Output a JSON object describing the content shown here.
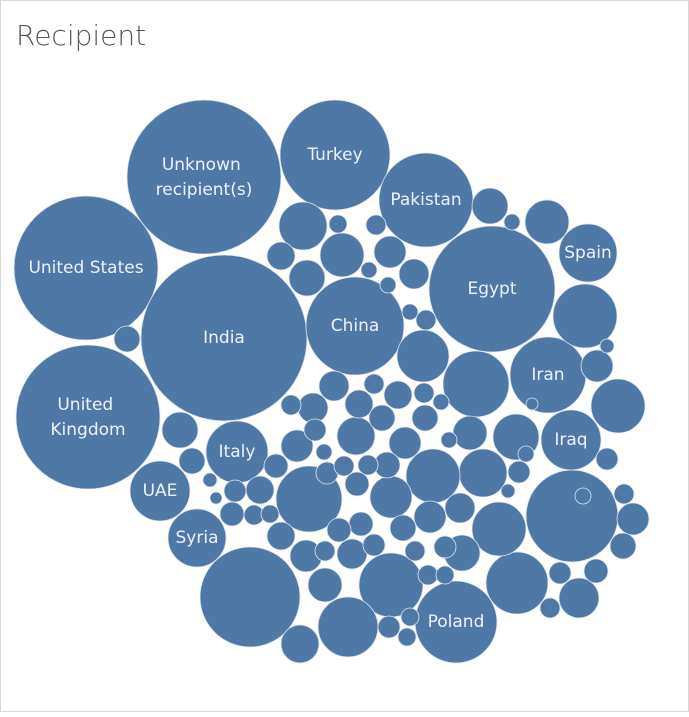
{
  "chart_data": {
    "type": "bubble",
    "title": "Recipient",
    "color": "#4e79a7",
    "categories": [
      "Unknown recipient(s)",
      "Turkey",
      "Pakistan",
      "United States",
      "India",
      "China",
      "Egypt",
      "Spain",
      "United Kingdom",
      "Iran",
      "Iraq",
      "Italy",
      "UAE",
      "Syria",
      "Poland",
      null,
      null,
      null,
      null,
      null,
      null,
      null,
      null,
      null,
      null,
      null,
      null,
      null,
      null,
      null,
      null,
      null,
      null,
      null,
      null,
      null,
      null,
      null,
      null,
      null,
      null,
      null,
      null,
      null,
      null,
      null,
      null,
      null,
      null,
      null,
      null,
      null,
      null,
      null,
      null,
      null,
      null,
      null,
      null,
      null,
      null,
      null,
      null,
      null,
      null,
      null,
      null,
      null,
      null,
      null,
      null,
      null,
      null,
      null,
      null,
      null,
      null,
      null,
      null,
      null,
      null,
      null,
      null,
      null,
      null,
      null,
      null,
      null,
      null,
      null,
      null,
      null,
      null,
      null,
      null,
      null,
      null,
      null,
      null,
      null,
      null,
      null,
      null,
      null,
      null,
      null,
      null,
      null,
      null,
      null,
      null,
      null,
      null
    ],
    "values": [
      5929,
      3025,
      2209,
      5184,
      6889,
      2401,
      3969,
      841,
      5184,
      1444,
      900,
      961,
      900,
      841,
      1681,
      2500,
      2116,
      1089,
      1024,
      961,
      900,
      1024,
      1089,
      729,
      576,
      729,
      484,
      576,
      324,
      729,
      676,
      441,
      484,
      324,
      529,
      400,
      361,
      324,
      169,
      324,
      169,
      196,
      256,
      225,
      361,
      256,
      121,
      100,
      256,
      169,
      144,
      121,
      100,
      289,
      256,
      289,
      225,
      256,
      196,
      196,
      256,
      225,
      225,
      196,
      169,
      196,
      256,
      169,
      100,
      225,
      100,
      81,
      100,
      64,
      64,
      64,
      100,
      121,
      49,
      64,
      49,
      121,
      144,
      100,
      81,
      144,
      169,
      144,
      144,
      169,
      144,
      121,
      100,
      121,
      100,
      100,
      81,
      121,
      81,
      81,
      121,
      100,
      100,
      64,
      64,
      121,
      64,
      100,
      49,
      36,
      64,
      64,
      36
    ]
  }
}
